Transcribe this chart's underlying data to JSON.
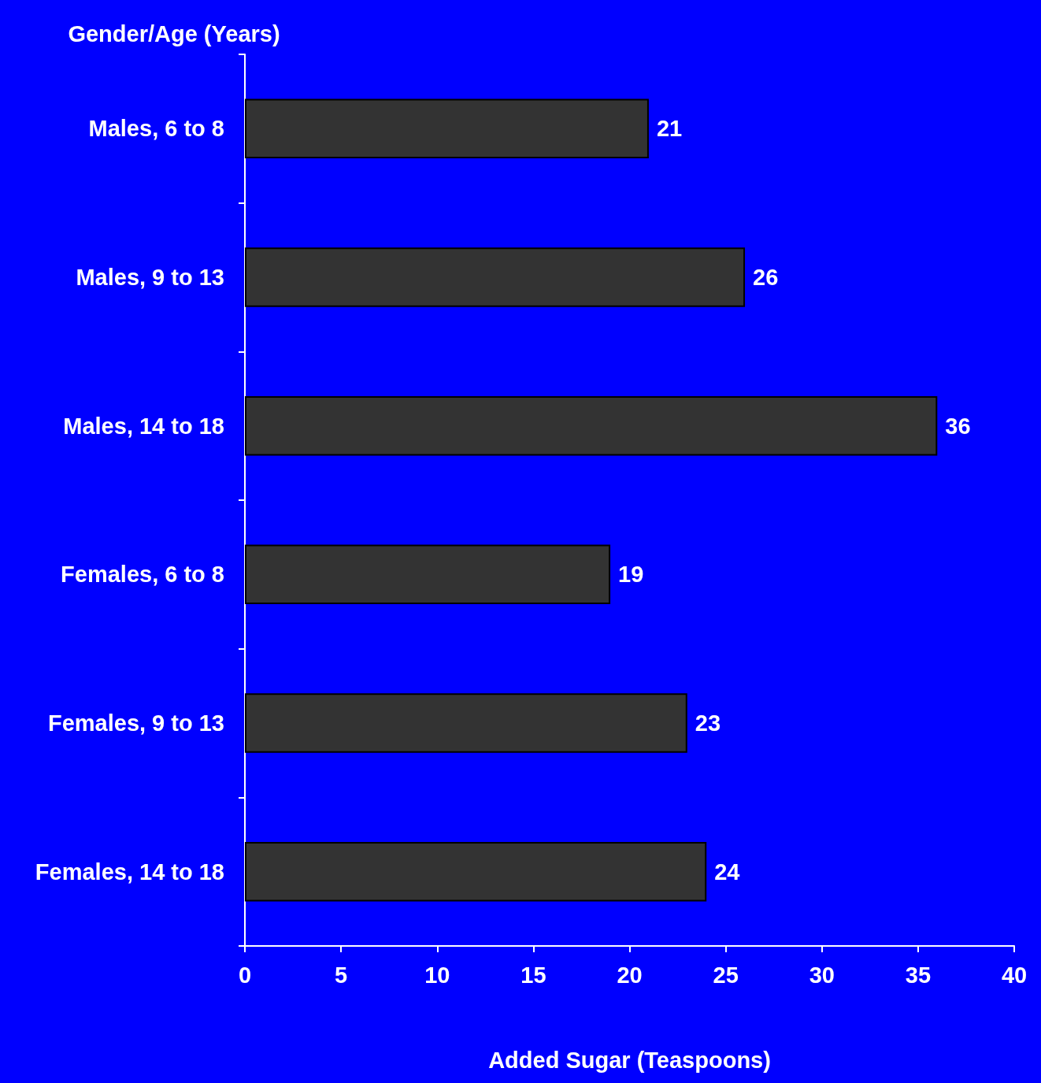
{
  "chart_data": {
    "type": "bar",
    "orientation": "horizontal",
    "categories": [
      "Males, 6 to 8",
      "Males, 9 to 13",
      "Males, 14 to 18",
      "Females, 6 to 8",
      "Females, 9 to 13",
      "Females, 14 to 18"
    ],
    "values": [
      21,
      26,
      36,
      19,
      23,
      24
    ],
    "color": "#333333",
    "xlabel": "Added Sugar (Teaspoons)",
    "ylabel": "Gender/Age (Years)",
    "xlim": [
      0,
      40
    ],
    "xticks": [
      0,
      5,
      10,
      15,
      20,
      25,
      30,
      35,
      40
    ],
    "data_labels": true
  }
}
